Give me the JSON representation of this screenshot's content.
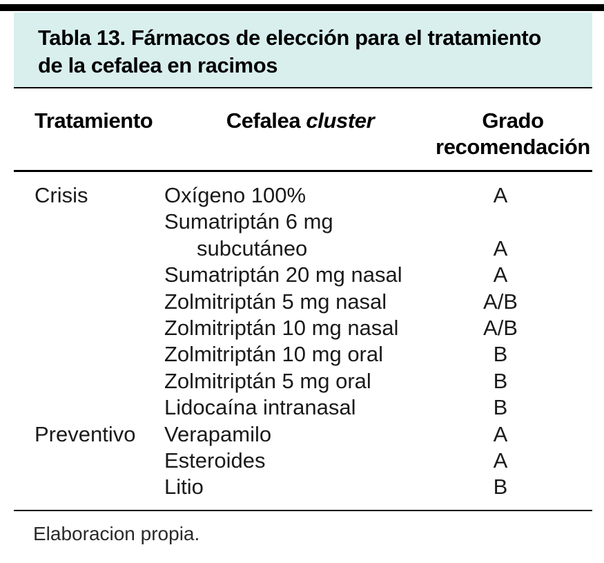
{
  "title": {
    "line1": "Tabla 13. Fármacos de elección para el tratamiento",
    "line2": "de la cefalea en racimos"
  },
  "columns": {
    "treatment": "Tratamiento",
    "headache_normal": "Cefalea ",
    "headache_italic": "cluster",
    "grade": "Grado recomendación"
  },
  "table": {
    "rows": [
      {
        "treatment": "Crisis",
        "drug": "Oxígeno 100%",
        "grade": "A",
        "indent": false
      },
      {
        "treatment": "",
        "drug": "Sumatriptán 6 mg",
        "grade": "",
        "indent": false
      },
      {
        "treatment": "",
        "drug": "subcutáneo",
        "grade": "A",
        "indent": true
      },
      {
        "treatment": "",
        "drug": "Sumatriptán 20 mg nasal",
        "grade": "A",
        "indent": false
      },
      {
        "treatment": "",
        "drug": "Zolmitriptán 5 mg nasal",
        "grade": "A/B",
        "indent": false
      },
      {
        "treatment": "",
        "drug": "Zolmitriptán 10 mg nasal",
        "grade": "A/B",
        "indent": false
      },
      {
        "treatment": "",
        "drug": "Zolmitriptán 10 mg oral",
        "grade": "B",
        "indent": false
      },
      {
        "treatment": "",
        "drug": "Zolmitriptán 5 mg oral",
        "grade": "B",
        "indent": false
      },
      {
        "treatment": "",
        "drug": "Lidocaína intranasal",
        "grade": "B",
        "indent": false
      },
      {
        "treatment": "Preventivo",
        "drug": "Verapamilo",
        "grade": "A",
        "indent": false
      },
      {
        "treatment": "",
        "drug": "Esteroides",
        "grade": "A",
        "indent": false
      },
      {
        "treatment": "",
        "drug": "Litio",
        "grade": "B",
        "indent": false
      }
    ]
  },
  "footnote": "Elaboracion propia.",
  "colors": {
    "title_band_background": "#d8efee",
    "rule": "#000000",
    "text": "#1a1a1a"
  }
}
